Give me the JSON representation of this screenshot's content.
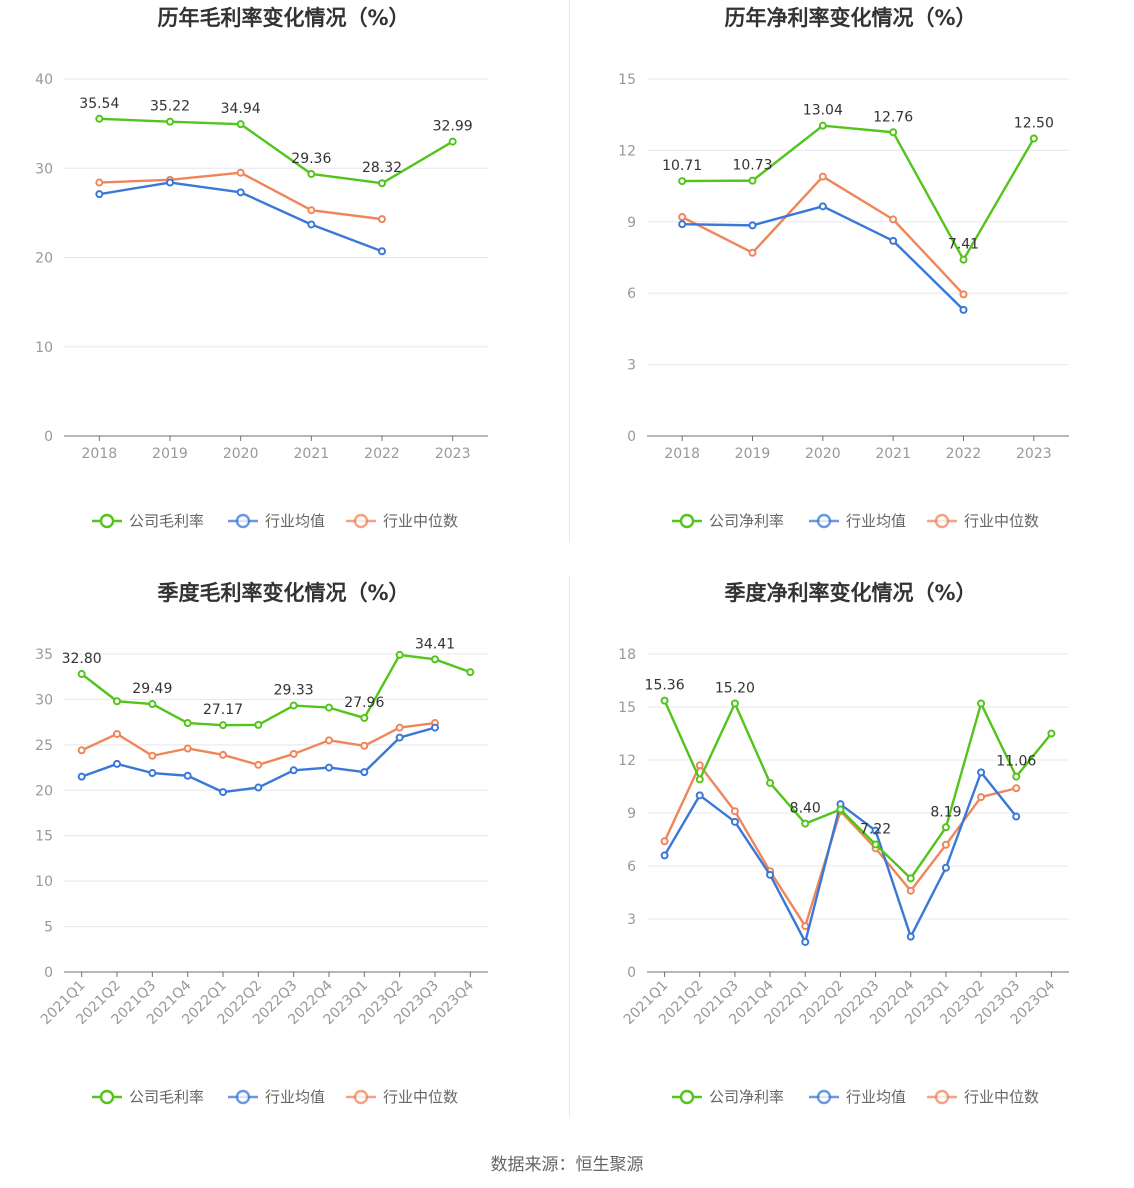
{
  "source": "数据来源：恒生聚源",
  "colors": {
    "company": "#52c41a",
    "avg": "#3a78d8",
    "median": "#f0855a"
  },
  "charts": [
    {
      "chart_data": {
        "type": "line",
        "title": "历年毛利率变化情况（%）",
        "categories": [
          "2018",
          "2019",
          "2020",
          "2021",
          "2022",
          "2023"
        ],
        "ylim": [
          0,
          40
        ],
        "yticks": [
          0,
          10,
          20,
          30,
          40
        ],
        "series": [
          {
            "name": "公司毛利率",
            "role": "company",
            "values": [
              35.54,
              35.22,
              34.94,
              29.36,
              28.32,
              32.99
            ]
          },
          {
            "name": "行业均值",
            "role": "avg",
            "values": [
              27.1,
              28.4,
              27.3,
              23.7,
              20.7,
              null
            ]
          },
          {
            "name": "行业中位数",
            "role": "median",
            "values": [
              28.4,
              28.7,
              29.5,
              25.3,
              24.3,
              null
            ]
          }
        ],
        "data_labels": [
          {
            "index": 0,
            "text": "35.54"
          },
          {
            "index": 1,
            "text": "35.22"
          },
          {
            "index": 2,
            "text": "34.94"
          },
          {
            "index": 3,
            "text": "29.36"
          },
          {
            "index": 4,
            "text": "28.32"
          },
          {
            "index": 5,
            "text": "32.99"
          }
        ],
        "legend": "bottom",
        "grid": true
      }
    },
    {
      "chart_data": {
        "type": "line",
        "title": "历年净利率变化情况（%）",
        "categories": [
          "2018",
          "2019",
          "2020",
          "2021",
          "2022",
          "2023"
        ],
        "ylim": [
          0,
          15
        ],
        "yticks": [
          0,
          3,
          6,
          9,
          12,
          15
        ],
        "series": [
          {
            "name": "公司净利率",
            "role": "company",
            "values": [
              10.71,
              10.73,
              13.04,
              12.76,
              7.41,
              12.5
            ]
          },
          {
            "name": "行业均值",
            "role": "avg",
            "values": [
              8.9,
              8.85,
              9.65,
              8.2,
              5.3,
              null
            ]
          },
          {
            "name": "行业中位数",
            "role": "median",
            "values": [
              9.2,
              7.7,
              10.9,
              9.1,
              5.95,
              null
            ]
          }
        ],
        "data_labels": [
          {
            "index": 0,
            "text": "10.71"
          },
          {
            "index": 1,
            "text": "10.73"
          },
          {
            "index": 2,
            "text": "13.04"
          },
          {
            "index": 3,
            "text": "12.76"
          },
          {
            "index": 4,
            "text": "7.41"
          },
          {
            "index": 5,
            "text": "12.50"
          }
        ],
        "legend": "bottom",
        "grid": true
      }
    },
    {
      "chart_data": {
        "type": "line",
        "title": "季度毛利率变化情况（%）",
        "categories": [
          "2021Q1",
          "2021Q2",
          "2021Q3",
          "2021Q4",
          "2022Q1",
          "2022Q2",
          "2022Q3",
          "2022Q4",
          "2023Q1",
          "2023Q2",
          "2023Q3",
          "2023Q4"
        ],
        "ylim": [
          0,
          35
        ],
        "yticks": [
          0,
          5,
          10,
          15,
          20,
          25,
          30,
          35
        ],
        "series": [
          {
            "name": "公司毛利率",
            "role": "company",
            "values": [
              32.8,
              29.8,
              29.49,
              27.4,
              27.17,
              27.2,
              29.33,
              29.1,
              27.96,
              34.9,
              34.41,
              33.0
            ]
          },
          {
            "name": "行业均值",
            "role": "avg",
            "values": [
              21.5,
              22.9,
              21.9,
              21.6,
              19.8,
              20.3,
              22.2,
              22.5,
              22.0,
              25.8,
              26.9,
              null
            ]
          },
          {
            "name": "行业中位数",
            "role": "median",
            "values": [
              24.4,
              26.2,
              23.8,
              24.6,
              23.9,
              22.8,
              24.0,
              25.5,
              24.9,
              26.9,
              27.4,
              null
            ]
          }
        ],
        "data_labels": [
          {
            "index": 0,
            "text": "32.80"
          },
          {
            "index": 2,
            "text": "29.49"
          },
          {
            "index": 4,
            "text": "27.17"
          },
          {
            "index": 6,
            "text": "29.33"
          },
          {
            "index": 8,
            "text": "27.96"
          },
          {
            "index": 10,
            "text": "34.41"
          }
        ],
        "legend": "bottom",
        "grid": true
      }
    },
    {
      "chart_data": {
        "type": "line",
        "title": "季度净利率变化情况（%）",
        "categories": [
          "2021Q1",
          "2021Q2",
          "2021Q3",
          "2021Q4",
          "2022Q1",
          "2022Q2",
          "2022Q3",
          "2022Q4",
          "2023Q1",
          "2023Q2",
          "2023Q3",
          "2023Q4"
        ],
        "ylim": [
          0,
          18
        ],
        "yticks": [
          0,
          3,
          6,
          9,
          12,
          15,
          18
        ],
        "series": [
          {
            "name": "公司净利率",
            "role": "company",
            "values": [
              15.36,
              10.9,
              15.2,
              10.7,
              8.4,
              9.2,
              7.22,
              5.3,
              8.19,
              15.2,
              11.06,
              13.5
            ]
          },
          {
            "name": "行业均值",
            "role": "avg",
            "values": [
              6.6,
              10.0,
              8.5,
              5.5,
              1.7,
              9.5,
              8.0,
              2.0,
              5.9,
              11.3,
              8.8,
              null
            ]
          },
          {
            "name": "行业中位数",
            "role": "median",
            "values": [
              7.4,
              11.7,
              9.1,
              5.7,
              2.6,
              9.1,
              7.0,
              4.6,
              7.2,
              9.9,
              10.4,
              null
            ]
          }
        ],
        "data_labels": [
          {
            "index": 0,
            "text": "15.36"
          },
          {
            "index": 2,
            "text": "15.20"
          },
          {
            "index": 4,
            "text": "8.40"
          },
          {
            "index": 6,
            "text": "7.22"
          },
          {
            "index": 8,
            "text": "8.19"
          },
          {
            "index": 10,
            "text": "11.06"
          }
        ],
        "legend": "bottom",
        "grid": true
      }
    }
  ]
}
